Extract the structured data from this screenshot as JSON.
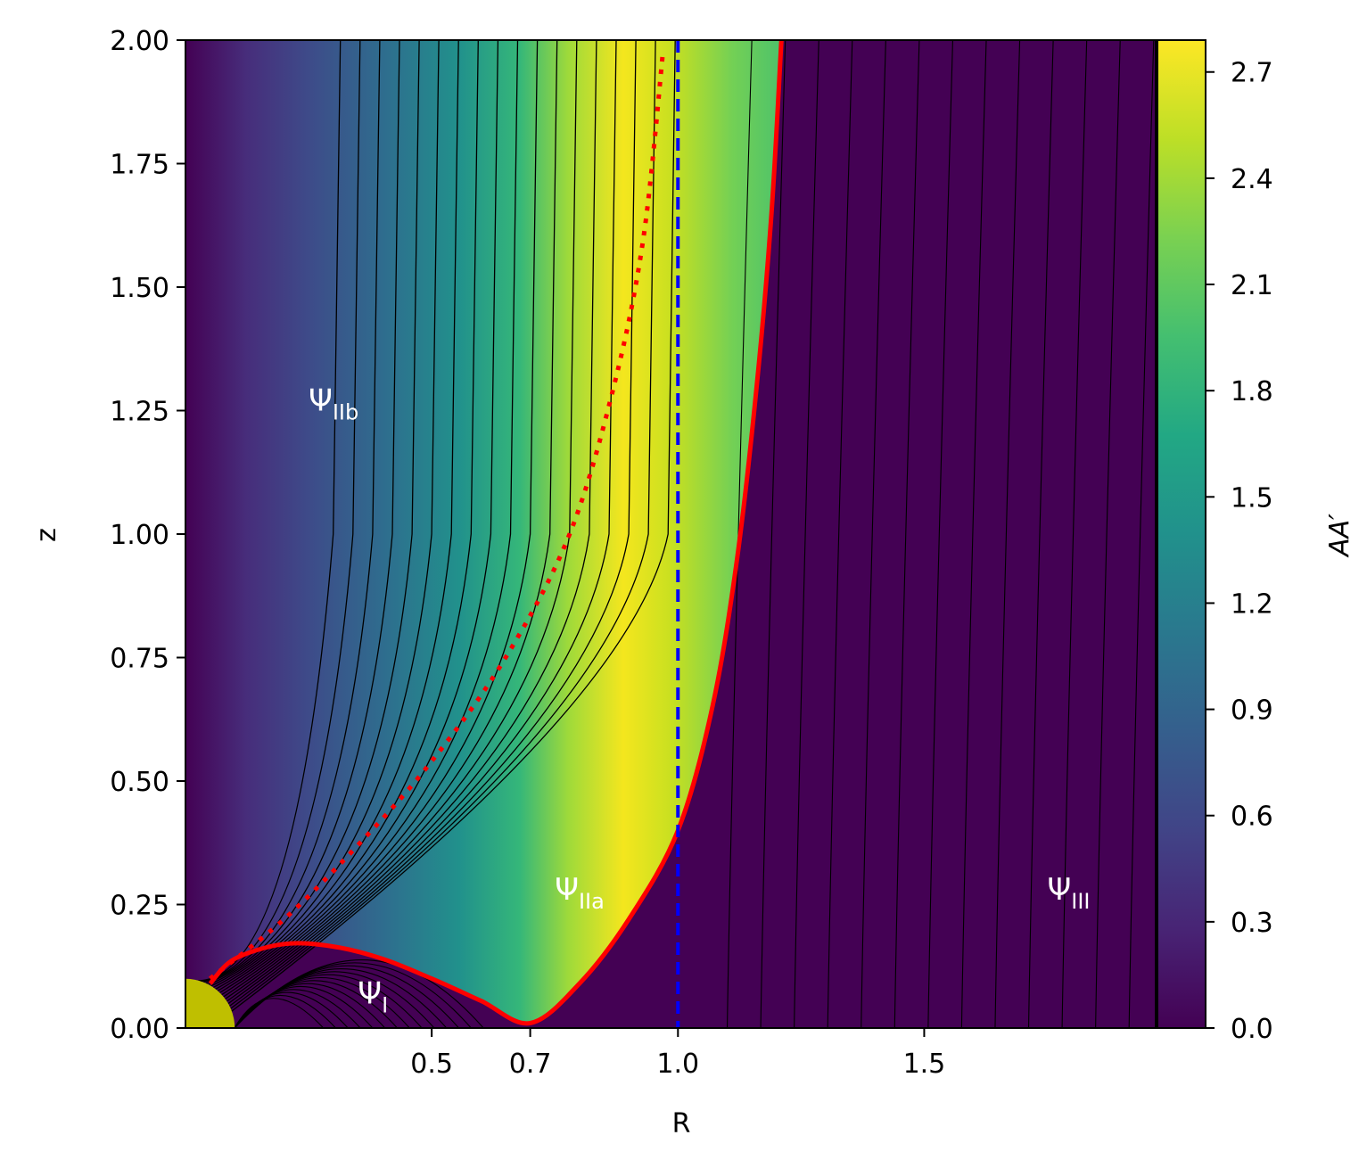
{
  "chart_data": {
    "type": "heatmap",
    "title": "",
    "xlabel": "R",
    "ylabel": "z",
    "colorbar_label": "AA′",
    "xlim": [
      0.0,
      1.97
    ],
    "ylim": [
      0.0,
      2.0
    ],
    "x_ticks": [
      0.5,
      0.7,
      1.0,
      1.5
    ],
    "x_tick_labels": [
      "0.5",
      "0.7",
      "1.0",
      "1.5"
    ],
    "y_ticks": [
      0.0,
      0.25,
      0.5,
      0.75,
      1.0,
      1.25,
      1.5,
      1.75,
      2.0
    ],
    "y_tick_labels": [
      "0.00",
      "0.25",
      "0.50",
      "0.75",
      "1.00",
      "1.25",
      "1.50",
      "1.75",
      "2.00"
    ],
    "colorbar_range": [
      0.0,
      2.79
    ],
    "colorbar_ticks": [
      0.0,
      0.3,
      0.6,
      0.9,
      1.2,
      1.5,
      1.8,
      2.1,
      2.4,
      2.7
    ],
    "colorbar_tick_labels": [
      "0.0",
      "0.3",
      "0.6",
      "0.9",
      "1.2",
      "1.5",
      "1.8",
      "2.1",
      "2.4",
      "2.7"
    ],
    "colormap": "viridis",
    "colors": {
      "separatrix": "#ff0000",
      "light_cylinder": "#0000ff",
      "peak_curve": "#ff0000",
      "star": "#bfbf00",
      "field_lines": "#000000"
    },
    "separatrix": [
      {
        "x": 0.05,
        "y": 0.09
      },
      {
        "x": 0.1,
        "y": 0.14
      },
      {
        "x": 0.2,
        "y": 0.17
      },
      {
        "x": 0.3,
        "y": 0.165
      },
      {
        "x": 0.4,
        "y": 0.14
      },
      {
        "x": 0.5,
        "y": 0.1
      },
      {
        "x": 0.6,
        "y": 0.055
      },
      {
        "x": 0.7,
        "y": 0.01
      },
      {
        "x": 0.8,
        "y": 0.09
      },
      {
        "x": 0.9,
        "y": 0.22
      },
      {
        "x": 1.0,
        "y": 0.4
      },
      {
        "x": 1.07,
        "y": 0.65
      },
      {
        "x": 1.12,
        "y": 0.95
      },
      {
        "x": 1.16,
        "y": 1.3
      },
      {
        "x": 1.19,
        "y": 1.65
      },
      {
        "x": 1.21,
        "y": 2.0
      }
    ],
    "peak_curve": [
      {
        "x": 0.05,
        "y": 0.1
      },
      {
        "x": 0.2,
        "y": 0.22
      },
      {
        "x": 0.35,
        "y": 0.37
      },
      {
        "x": 0.5,
        "y": 0.54
      },
      {
        "x": 0.65,
        "y": 0.75
      },
      {
        "x": 0.78,
        "y": 1.0
      },
      {
        "x": 0.87,
        "y": 1.3
      },
      {
        "x": 0.93,
        "y": 1.6
      },
      {
        "x": 0.97,
        "y": 1.98
      }
    ],
    "light_cylinder_x": 1.0,
    "star_radius": 0.1,
    "regions": [
      {
        "label": "Ψ",
        "sub": "IIb",
        "x": 0.25,
        "y": 1.25
      },
      {
        "label": "Ψ",
        "sub": "IIa",
        "x": 0.75,
        "y": 0.26
      },
      {
        "label": "Ψ",
        "sub": "I",
        "x": 0.35,
        "y": 0.05
      },
      {
        "label": "Ψ",
        "sub": "III",
        "x": 1.75,
        "y": 0.26
      }
    ]
  }
}
